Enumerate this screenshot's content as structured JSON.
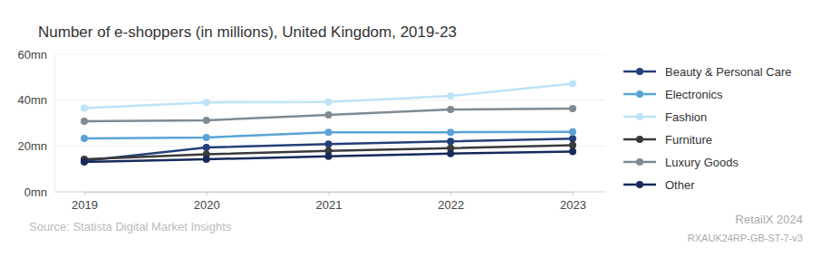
{
  "chart_data": {
    "type": "line",
    "title": "Number of e-shoppers (in millions), United Kingdom, 2019-23",
    "source": "Source: Statista Digital Market Insights",
    "annotations": [
      "RetailX 2024",
      "RXAUK24RP-GB-ST-7-v3"
    ],
    "categories": [
      "2019",
      "2020",
      "2021",
      "2022",
      "2023"
    ],
    "series": [
      {
        "name": "Beauty & Personal Care",
        "color": "#243f78",
        "values": [
          13.5,
          19.3,
          20.8,
          22.0,
          23.2
        ]
      },
      {
        "name": "Electronics",
        "color": "#5ba3d6",
        "values": [
          23.3,
          23.7,
          26.0,
          26.0,
          26.2
        ]
      },
      {
        "name": "Fashion",
        "color": "#bde3f7",
        "values": [
          36.5,
          39.0,
          39.2,
          41.8,
          47.2
        ]
      },
      {
        "name": "Furniture",
        "color": "#3a3a3a",
        "values": [
          14.2,
          16.4,
          17.9,
          19.0,
          20.3
        ]
      },
      {
        "name": "Luxury Goods",
        "color": "#7f8a93",
        "values": [
          30.8,
          31.2,
          33.6,
          35.9,
          36.3
        ]
      },
      {
        "name": "Other",
        "color": "#172a5a",
        "values": [
          13.0,
          14.2,
          15.5,
          16.7,
          17.6
        ]
      }
    ],
    "ylim": [
      0,
      60
    ],
    "yticks": [
      {
        "value": 0,
        "label": "0mn"
      },
      {
        "value": 20,
        "label": "20mn"
      },
      {
        "value": 40,
        "label": "40mn"
      },
      {
        "value": 60,
        "label": "60mn"
      }
    ],
    "grid": true,
    "marker": "circle",
    "legend": "right"
  }
}
